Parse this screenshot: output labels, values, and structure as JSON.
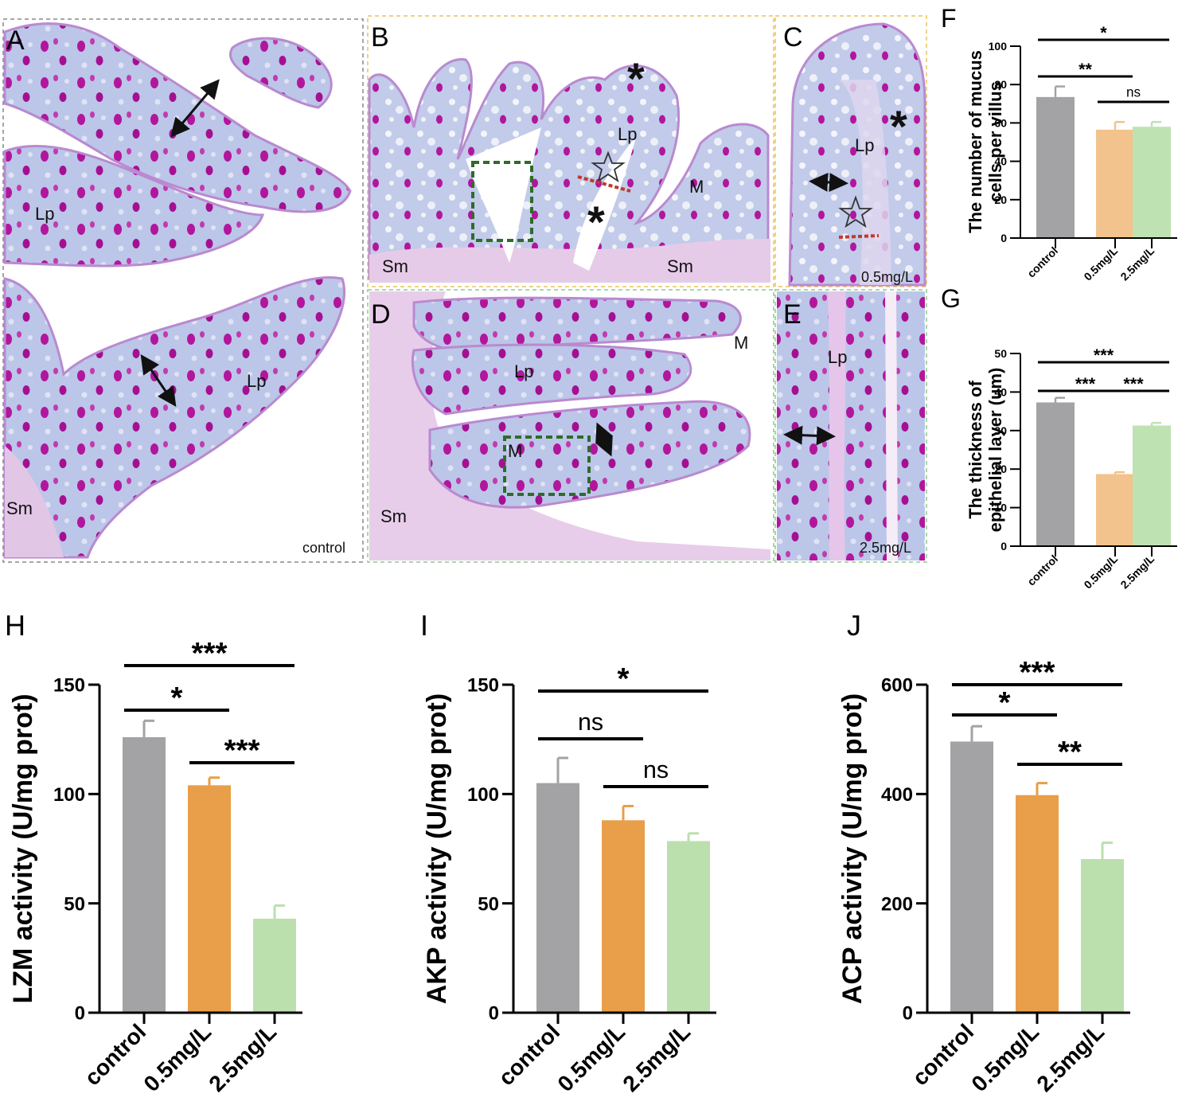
{
  "panels": {
    "A": {
      "letter": "A",
      "caption": "control",
      "labels": [
        "Lp",
        "Lp",
        "Sm"
      ]
    },
    "B": {
      "letter": "B",
      "labels": [
        "Lp",
        "M",
        "Sm",
        "Sm"
      ]
    },
    "C": {
      "letter": "C",
      "caption": "0.5mg/L",
      "labels": [
        "Lp"
      ]
    },
    "D": {
      "letter": "D",
      "labels": [
        "Lp",
        "M",
        "M",
        "Sm"
      ]
    },
    "E": {
      "letter": "E",
      "caption": "2.5mg/L",
      "labels": [
        "Lp"
      ]
    }
  },
  "colors": {
    "control": "#a3a3a5",
    "low_light": "#f2c38d",
    "high_light": "#bfe2b3",
    "low_dark": "#e99e49",
    "high_dark": "#bcdfae",
    "stain_bg": "#bcc6e8",
    "goblet": "#b2169c"
  },
  "chart_data": [
    {
      "id": "F",
      "letter": "F",
      "type": "bar",
      "categories": [
        "control",
        "0.5mg/L",
        "2.5mg/L"
      ],
      "values": [
        73.5,
        56.5,
        58
      ],
      "errors": [
        5.5,
        4,
        2.5
      ],
      "ylabel_lines": [
        "The number of mucus",
        "cells per villus"
      ],
      "ylim": [
        0,
        100
      ],
      "yticks": [
        0,
        20,
        40,
        60,
        80,
        100
      ],
      "colors": [
        "#a3a3a5",
        "#f2c38d",
        "#bfe2b3"
      ],
      "significance": [
        {
          "from": 0,
          "to": 1,
          "label": "**"
        },
        {
          "from": 1,
          "to": 2,
          "label": "ns"
        },
        {
          "from": 0,
          "to": 2,
          "label": "*"
        }
      ]
    },
    {
      "id": "G",
      "letter": "G",
      "type": "bar",
      "categories": [
        "control",
        "0.5mg/L",
        "2.5mg/L"
      ],
      "values": [
        37.3,
        18.7,
        31.3
      ],
      "errors": [
        1.2,
        0.5,
        0.7
      ],
      "ylabel_lines": [
        "The thickness of",
        "epithelial layer (um)"
      ],
      "ylim": [
        0,
        50
      ],
      "yticks": [
        0,
        10,
        20,
        30,
        40,
        50
      ],
      "colors": [
        "#a3a3a5",
        "#f2c38d",
        "#bfe2b3"
      ],
      "significance": [
        {
          "from": 0,
          "to": 1,
          "label": "***"
        },
        {
          "from": 1,
          "to": 2,
          "label": "***"
        },
        {
          "from": 0,
          "to": 2,
          "label": "***"
        }
      ]
    },
    {
      "id": "H",
      "letter": "H",
      "type": "bar",
      "categories": [
        "control",
        "0.5mg/L",
        "2.5mg/L"
      ],
      "values": [
        126,
        104,
        43
      ],
      "errors": [
        7.5,
        3.5,
        6
      ],
      "ylabel_lines": [
        "LZM activity (U/mg prot)"
      ],
      "ylim": [
        0,
        150
      ],
      "yticks": [
        0,
        50,
        100,
        150
      ],
      "colors": [
        "#a3a3a5",
        "#e99e49",
        "#bcdfae"
      ],
      "significance": [
        {
          "from": 0,
          "to": 1,
          "label": "*"
        },
        {
          "from": 1,
          "to": 2,
          "label": "***"
        },
        {
          "from": 0,
          "to": 2,
          "label": "***"
        }
      ]
    },
    {
      "id": "I",
      "letter": "I",
      "type": "bar",
      "categories": [
        "control",
        "0.5mg/L",
        "2.5mg/L"
      ],
      "values": [
        105,
        88,
        78.5
      ],
      "errors": [
        11.5,
        6.5,
        3.5
      ],
      "ylabel_lines": [
        "AKP activity (U/mg prot)"
      ],
      "ylim": [
        0,
        150
      ],
      "yticks": [
        0,
        50,
        100,
        150
      ],
      "colors": [
        "#a3a3a5",
        "#e99e49",
        "#bcdfae"
      ],
      "significance": [
        {
          "from": 0,
          "to": 1,
          "label": "ns"
        },
        {
          "from": 1,
          "to": 2,
          "label": "ns"
        },
        {
          "from": 0,
          "to": 2,
          "label": "*"
        }
      ]
    },
    {
      "id": "J",
      "letter": "J",
      "type": "bar",
      "categories": [
        "control",
        "0.5mg/L",
        "2.5mg/L"
      ],
      "values": [
        496,
        398,
        281
      ],
      "errors": [
        28,
        22,
        30
      ],
      "ylabel_lines": [
        "ACP activity (U/mg prot)"
      ],
      "ylim": [
        0,
        600
      ],
      "yticks": [
        0,
        200,
        400,
        600
      ],
      "colors": [
        "#a3a3a5",
        "#e99e49",
        "#bcdfae"
      ],
      "significance": [
        {
          "from": 0,
          "to": 1,
          "label": "*"
        },
        {
          "from": 1,
          "to": 2,
          "label": "**"
        },
        {
          "from": 0,
          "to": 2,
          "label": "***"
        }
      ]
    }
  ]
}
